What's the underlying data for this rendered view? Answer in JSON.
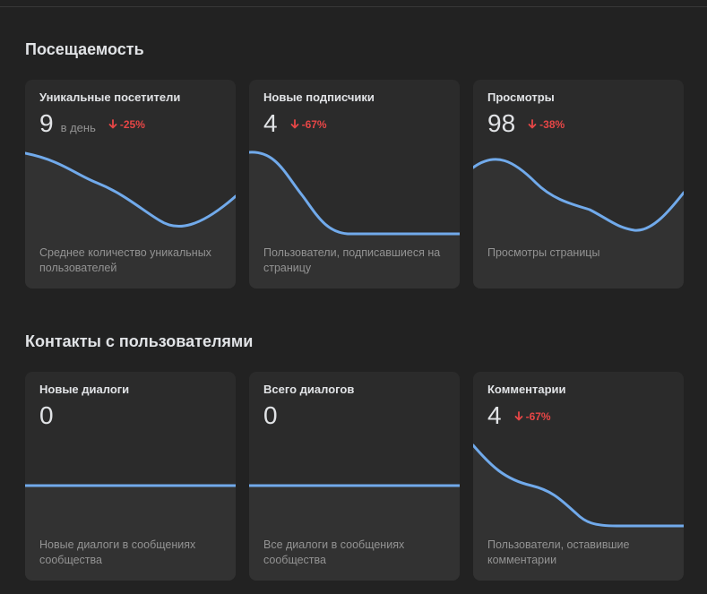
{
  "colors": {
    "background": "#222222",
    "card": "#2b2b2b",
    "chart_fill": "#323232",
    "line": "#71aaeb",
    "negative": "#e64646",
    "muted_text": "#939393"
  },
  "sections": [
    {
      "title": "Посещаемость",
      "cards": [
        {
          "title": "Уникальные посетители",
          "value": "9",
          "unit": "в день",
          "change": "-25%",
          "change_icon": "arrow-down-icon",
          "description": "Среднее количество уникальных пользователей"
        },
        {
          "title": "Новые подписчики",
          "value": "4",
          "unit": "",
          "change": "-67%",
          "change_icon": "arrow-down-icon",
          "description": "Пользователи, подписавшиеся на страницу"
        },
        {
          "title": "Просмотры",
          "value": "98",
          "unit": "",
          "change": "-38%",
          "change_icon": "arrow-down-icon",
          "description": "Просмотры страницы"
        }
      ]
    },
    {
      "title": "Контакты с пользователями",
      "cards": [
        {
          "title": "Новые диалоги",
          "value": "0",
          "unit": "",
          "change": "",
          "change_icon": "",
          "description": "Новые диалоги в сообщениях сообщества"
        },
        {
          "title": "Всего диалогов",
          "value": "0",
          "unit": "",
          "change": "",
          "change_icon": "",
          "description": "Все диалоги в сообщениях сообщества"
        },
        {
          "title": "Комментарии",
          "value": "4",
          "unit": "",
          "change": "-67%",
          "change_icon": "arrow-down-icon",
          "description": "Пользователи, оставившие комментарии"
        }
      ]
    }
  ]
}
